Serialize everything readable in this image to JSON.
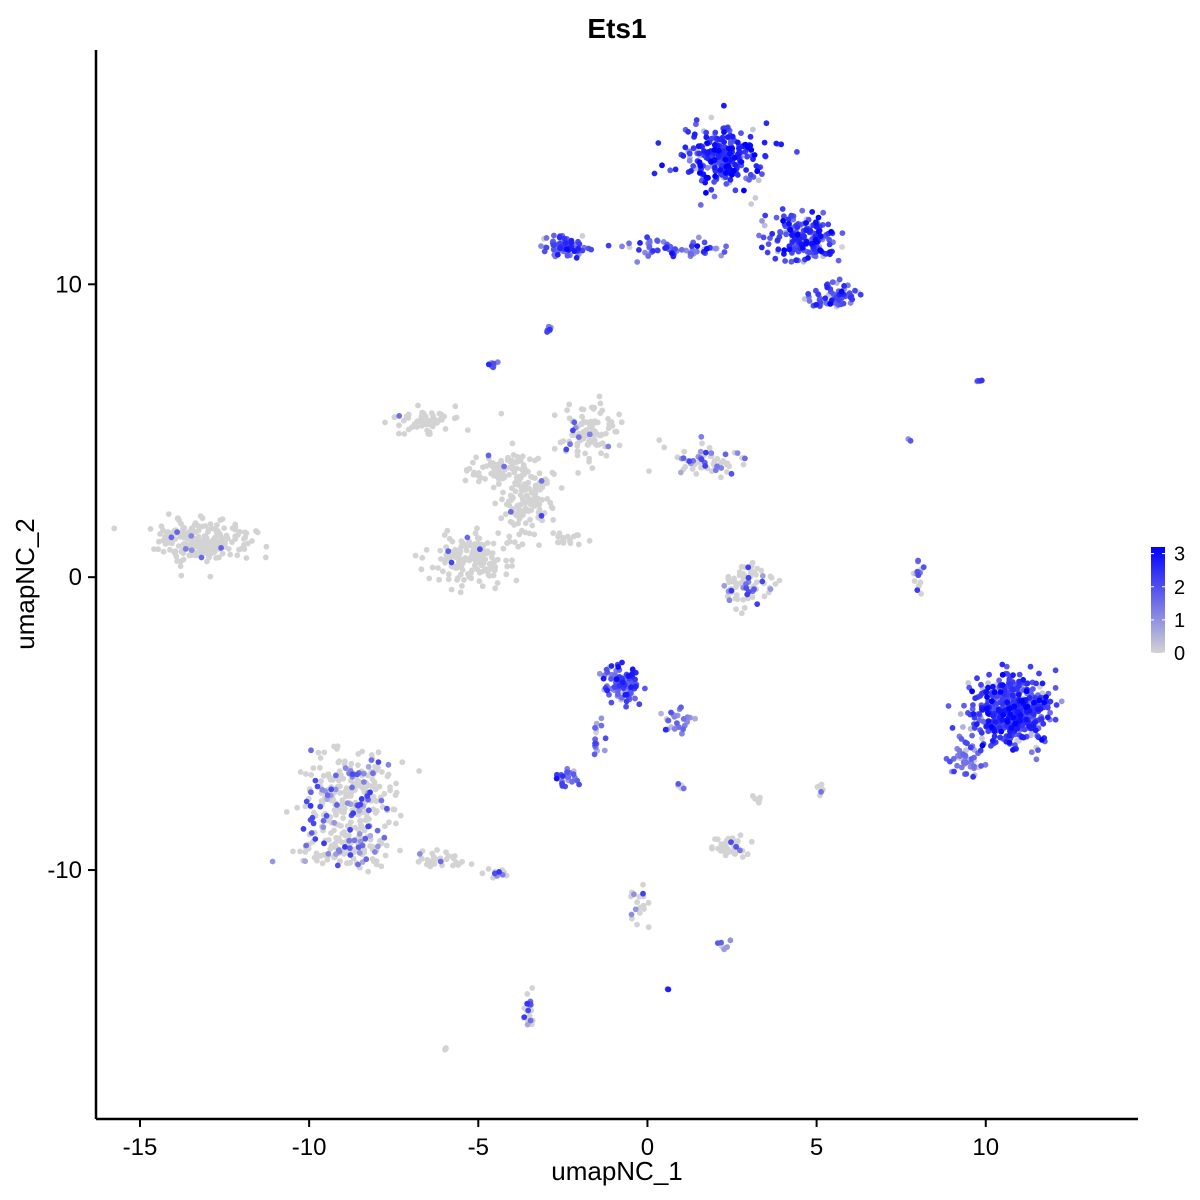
{
  "chart_data": {
    "type": "scatter",
    "title": "Ets1",
    "xlabel": "umapNC_1",
    "ylabel": "umapNC_2",
    "xlim": [
      -16.3,
      14.5
    ],
    "ylim": [
      -18.5,
      18.0
    ],
    "x_ticks": [
      -15,
      -10,
      -5,
      0,
      5,
      10
    ],
    "y_ticks": [
      -10,
      0,
      10
    ],
    "x_tick_labels": [
      "-15",
      "-10",
      "-5",
      "0",
      "5",
      "10"
    ],
    "y_tick_labels": [
      "-10",
      "0",
      "10"
    ],
    "grid": false,
    "legend": {
      "placement": "right",
      "type": "gradient",
      "range": [
        0,
        3.2
      ],
      "ticks": [
        0,
        1,
        2,
        3
      ],
      "tick_labels": [
        "0",
        "1",
        "2",
        "3"
      ]
    },
    "colors": {
      "low": "#d3d3d3",
      "high": "#0000ff"
    },
    "clusters": [
      {
        "x": 2.2,
        "y": 14.3,
        "sx": 0.95,
        "sy": 0.95,
        "n": 260,
        "expr": 2.4
      },
      {
        "x": 4.6,
        "y": 11.6,
        "sx": 0.85,
        "sy": 0.65,
        "n": 170,
        "expr": 2.3
      },
      {
        "x": 5.5,
        "y": 9.6,
        "sx": 0.6,
        "sy": 0.35,
        "n": 70,
        "expr": 2.0
      },
      {
        "x": -2.4,
        "y": 11.3,
        "sx": 0.45,
        "sy": 0.35,
        "n": 70,
        "expr": 1.9
      },
      {
        "x": 0.6,
        "y": 11.2,
        "sx": 1.3,
        "sy": 0.25,
        "n": 60,
        "expr": 1.8
      },
      {
        "x": -2.9,
        "y": 8.5,
        "sx": 0.12,
        "sy": 0.1,
        "n": 8,
        "expr": 1.6
      },
      {
        "x": -4.6,
        "y": 7.3,
        "sx": 0.15,
        "sy": 0.15,
        "n": 8,
        "expr": 1.5
      },
      {
        "x": 9.8,
        "y": 6.7,
        "sx": 0.12,
        "sy": 0.15,
        "n": 4,
        "expr": 2.5
      },
      {
        "x": 7.7,
        "y": 4.7,
        "sx": 0.1,
        "sy": 0.1,
        "n": 2,
        "expr": 1.0
      },
      {
        "x": -6.5,
        "y": 5.3,
        "sx": 0.7,
        "sy": 0.35,
        "n": 55,
        "expr": 0.1
      },
      {
        "x": -4.3,
        "y": 3.7,
        "sx": 0.9,
        "sy": 0.4,
        "n": 70,
        "expr": 0.15
      },
      {
        "x": -3.6,
        "y": 2.6,
        "sx": 0.75,
        "sy": 1.2,
        "n": 140,
        "expr": 0.15
      },
      {
        "x": -1.6,
        "y": 5.0,
        "sx": 0.9,
        "sy": 0.8,
        "n": 100,
        "expr": 0.15
      },
      {
        "x": 1.8,
        "y": 4.0,
        "sx": 1.0,
        "sy": 0.45,
        "n": 60,
        "expr": 0.5
      },
      {
        "x": -2.3,
        "y": 1.3,
        "sx": 0.5,
        "sy": 0.25,
        "n": 18,
        "expr": 0.2
      },
      {
        "x": -5.2,
        "y": 0.6,
        "sx": 1.0,
        "sy": 0.7,
        "n": 170,
        "expr": 0.15
      },
      {
        "x": -13.2,
        "y": 1.2,
        "sx": 1.2,
        "sy": 0.6,
        "n": 210,
        "expr": 0.05
      },
      {
        "x": 2.9,
        "y": -0.3,
        "sx": 0.65,
        "sy": 0.6,
        "n": 75,
        "expr": 0.35
      },
      {
        "x": 8.0,
        "y": -0.1,
        "sx": 0.12,
        "sy": 0.5,
        "n": 14,
        "expr": 0.8
      },
      {
        "x": 10.8,
        "y": -4.6,
        "sx": 0.9,
        "sy": 0.95,
        "n": 520,
        "expr": 2.2
      },
      {
        "x": 9.4,
        "y": -6.2,
        "sx": 0.4,
        "sy": 0.6,
        "n": 45,
        "expr": 1.5
      },
      {
        "x": -0.8,
        "y": -3.6,
        "sx": 0.45,
        "sy": 0.5,
        "n": 110,
        "expr": 1.9
      },
      {
        "x": 0.9,
        "y": -4.9,
        "sx": 0.35,
        "sy": 0.35,
        "n": 25,
        "expr": 1.2
      },
      {
        "x": -1.5,
        "y": -5.4,
        "sx": 0.2,
        "sy": 0.55,
        "n": 15,
        "expr": 1.5
      },
      {
        "x": -2.4,
        "y": -6.9,
        "sx": 0.25,
        "sy": 0.3,
        "n": 25,
        "expr": 1.7
      },
      {
        "x": -8.8,
        "y": -7.4,
        "sx": 1.1,
        "sy": 1.3,
        "n": 260,
        "expr": 0.4
      },
      {
        "x": -8.9,
        "y": -9.2,
        "sx": 1.2,
        "sy": 0.6,
        "n": 120,
        "expr": 0.35
      },
      {
        "x": -6.2,
        "y": -9.6,
        "sx": 0.6,
        "sy": 0.3,
        "n": 35,
        "expr": 0.2
      },
      {
        "x": -4.5,
        "y": -10.1,
        "sx": 0.35,
        "sy": 0.2,
        "n": 12,
        "expr": 0.3
      },
      {
        "x": 2.4,
        "y": -9.2,
        "sx": 0.45,
        "sy": 0.35,
        "n": 40,
        "expr": 0.15
      },
      {
        "x": 5.1,
        "y": -7.3,
        "sx": 0.1,
        "sy": 0.2,
        "n": 8,
        "expr": 0.05
      },
      {
        "x": -0.2,
        "y": -11.2,
        "sx": 0.3,
        "sy": 0.7,
        "n": 18,
        "expr": 0.5
      },
      {
        "x": 2.3,
        "y": -12.5,
        "sx": 0.2,
        "sy": 0.15,
        "n": 7,
        "expr": 0.6
      },
      {
        "x": -3.5,
        "y": -14.8,
        "sx": 0.15,
        "sy": 0.5,
        "n": 22,
        "expr": 0.7
      },
      {
        "x": 0.6,
        "y": -14.1,
        "sx": 0.05,
        "sy": 0.05,
        "n": 2,
        "expr": 2.0
      },
      {
        "x": -6.0,
        "y": -16.1,
        "sx": 0.05,
        "sy": 0.05,
        "n": 3,
        "expr": 0.0
      },
      {
        "x": 1.1,
        "y": -7.2,
        "sx": 0.3,
        "sy": 0.2,
        "n": 6,
        "expr": 0.4
      },
      {
        "x": 3.3,
        "y": -7.6,
        "sx": 0.2,
        "sy": 0.15,
        "n": 5,
        "expr": 0.1
      }
    ]
  }
}
